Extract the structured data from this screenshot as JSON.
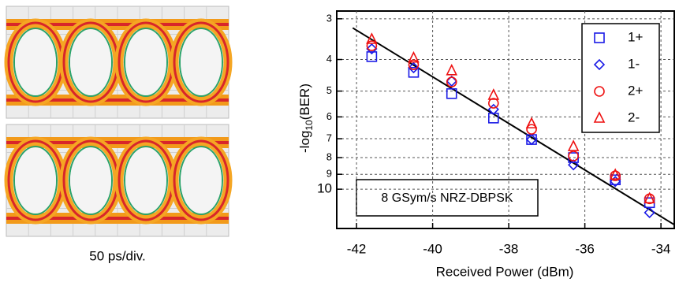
{
  "chart_data": {
    "type": "scatter",
    "caption": "50 ps/div.",
    "x_label": "Received Power (dBm)",
    "y_label": {
      "text": "-log",
      "subscript": "10",
      "suffix": "(BER)"
    },
    "annotation": "8 GSym/s NRZ-DBPSK",
    "x": [
      -41.6,
      -40.5,
      -39.5,
      -38.4,
      -37.4,
      -36.3,
      -35.2,
      -34.3
    ],
    "series": [
      {
        "name": "1+",
        "color": "#1a1ae6",
        "marker": "square",
        "values": [
          3.92,
          4.38,
          5.09,
          6.05,
          7.04,
          8.0,
          9.36,
          11.0
        ]
      },
      {
        "name": "1-",
        "color": "#1a1ae6",
        "marker": "diamond",
        "values": [
          3.71,
          4.24,
          4.66,
          5.69,
          7.04,
          8.42,
          9.47,
          11.8
        ]
      },
      {
        "name": "2+",
        "color": "#ee1111",
        "marker": "circle",
        "values": [
          3.63,
          4.15,
          4.69,
          5.45,
          6.55,
          7.91,
          9.1,
          10.7
        ]
      },
      {
        "name": "2-",
        "color": "#ee1111",
        "marker": "triangle",
        "values": [
          3.47,
          3.96,
          4.33,
          5.15,
          6.3,
          7.4,
          9.05,
          10.7
        ]
      }
    ],
    "fit_line": {
      "x": [
        -42.1,
        -33.65
      ],
      "values": [
        3.2,
        12.85
      ],
      "color": "#000000"
    },
    "xlim": [
      -42.52,
      -33.65
    ],
    "xticks": [
      -42,
      -40,
      -38,
      -36,
      -34
    ],
    "ylim": [
      2.84,
      13.2
    ],
    "yticks": [
      3,
      4,
      5,
      6,
      7,
      8,
      9,
      10
    ],
    "y_scale": "log",
    "y_inverted": true,
    "grid": true,
    "legend_position": "upper-right"
  }
}
